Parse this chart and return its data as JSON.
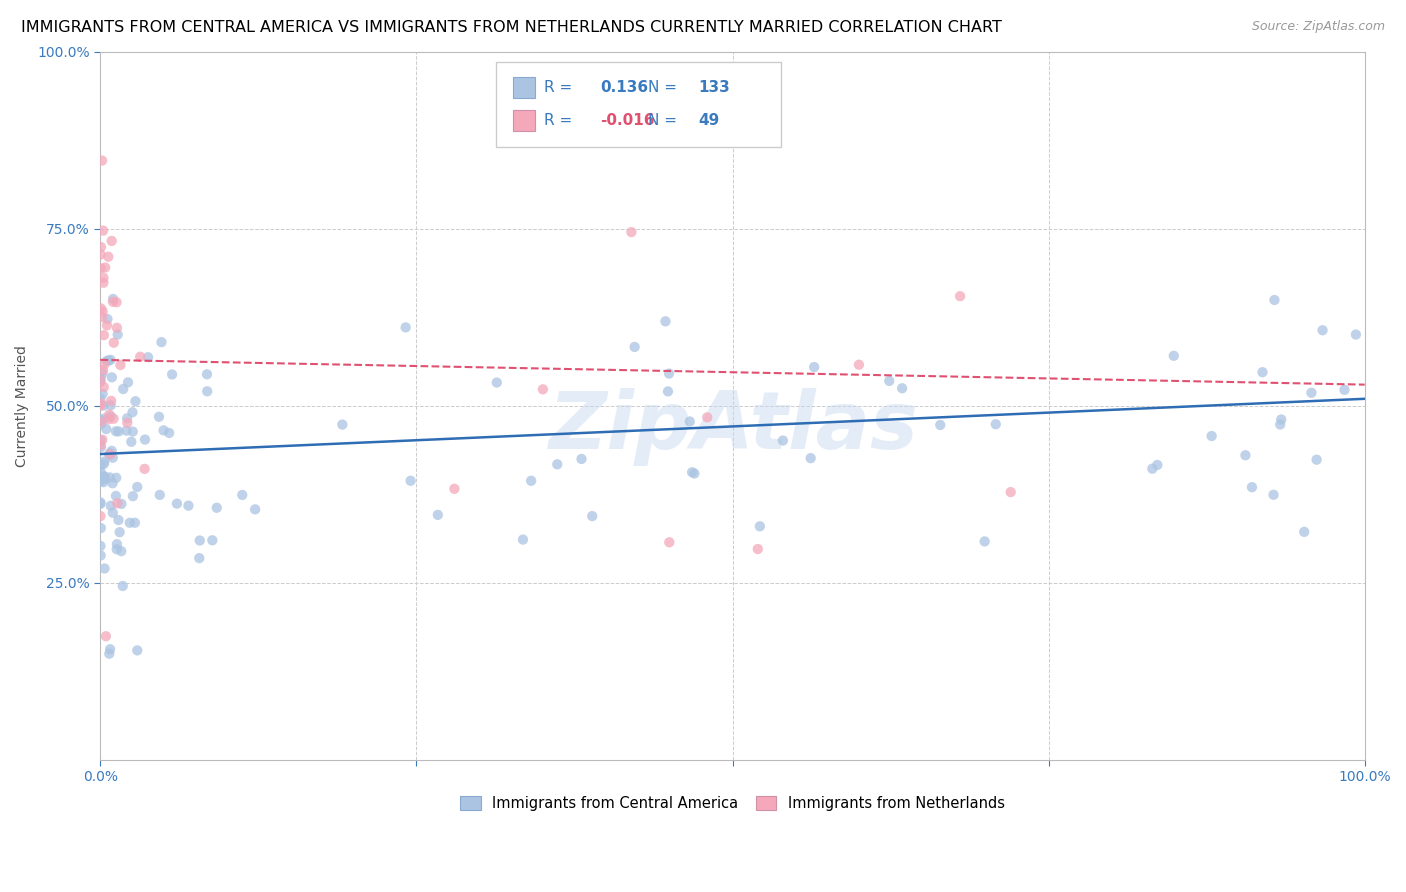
{
  "title": "IMMIGRANTS FROM CENTRAL AMERICA VS IMMIGRANTS FROM NETHERLANDS CURRENTLY MARRIED CORRELATION CHART",
  "source": "Source: ZipAtlas.com",
  "ylabel": "Currently Married",
  "xmin": 0.0,
  "xmax": 1.0,
  "ymin": 0.0,
  "ymax": 1.0,
  "blue_color": "#aac4e2",
  "pink_color": "#f4a8ba",
  "blue_line_color": "#2e6db4",
  "pink_line_color": "#e05070",
  "R_blue": 0.136,
  "N_blue": 133,
  "R_pink": -0.016,
  "N_pink": 49,
  "legend_label_blue": "Immigrants from Central America",
  "legend_label_pink": "Immigrants from Netherlands",
  "watermark": "ZipAtlas",
  "title_fontsize": 11.5,
  "axis_label_fontsize": 10,
  "tick_fontsize": 10,
  "blue_line_start_y": 0.432,
  "blue_line_end_y": 0.51,
  "pink_line_start_y": 0.565,
  "pink_line_end_y": 0.53,
  "pink_line_end_x": 1.0
}
